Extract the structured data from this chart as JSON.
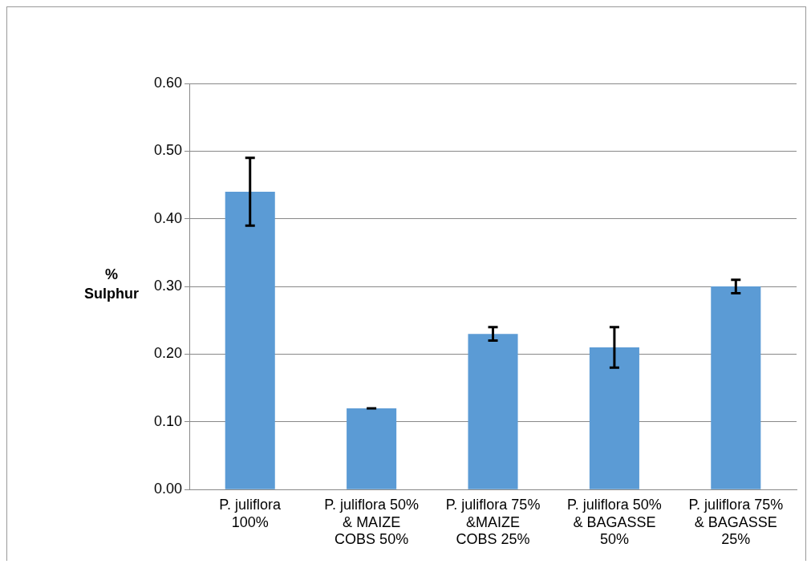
{
  "chart_data": {
    "type": "bar",
    "ylabel": "% Sulphur",
    "categories": [
      "P. juliflora 100%",
      "P. juliflora 50% & MAIZE COBS 50%",
      "P. juliflora 75% &MAIZE COBS 25%",
      "P. juliflora 50% & BAGASSE 50%",
      "P. juliflora 75% & BAGASSE 25%"
    ],
    "values": [
      0.44,
      0.12,
      0.23,
      0.21,
      0.3
    ],
    "errors": [
      0.05,
      0,
      0.01,
      0.03,
      0.01
    ],
    "color": "#5b9bd5",
    "ylim": [
      0,
      0.6
    ],
    "yticks": [
      {
        "value": 0,
        "label": "0.00"
      },
      {
        "value": 0.1,
        "label": "0.10"
      },
      {
        "value": 0.2,
        "label": "0.20"
      },
      {
        "value": 0.3,
        "label": "0.30"
      },
      {
        "value": 0.4,
        "label": "0.40"
      },
      {
        "value": 0.5,
        "label": "0.50"
      },
      {
        "value": 0.6,
        "label": "0.60"
      }
    ],
    "grid": "y",
    "legend": false
  }
}
